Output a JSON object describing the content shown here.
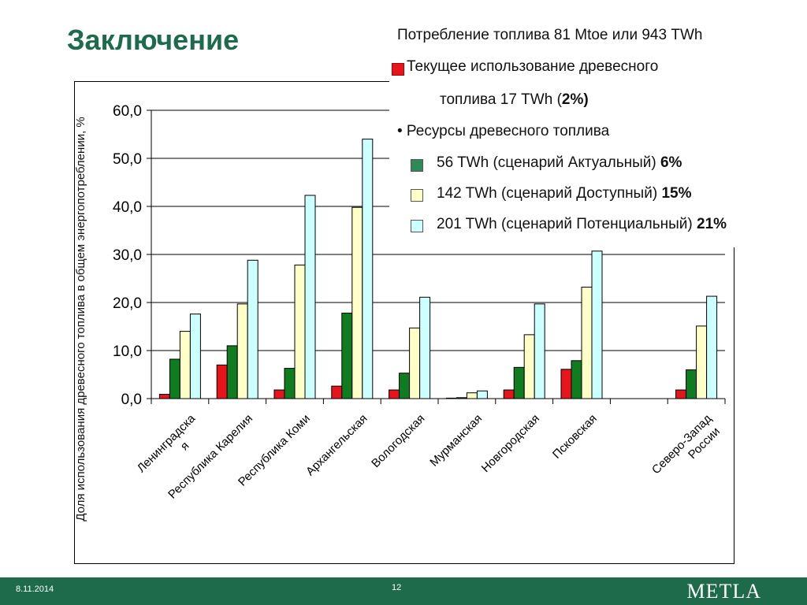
{
  "slide": {
    "title": "Заключение",
    "footer_date": "8.11.2014",
    "page_number": "12",
    "logo": "METLA"
  },
  "info": {
    "line1": "Потребление топлива 81 Mtoe или 943 TWh",
    "line2": "Текущее использование древесного",
    "line3_text": "топлива 17 TWh (",
    "line3_bold": "2%)",
    "line4": "• Ресурсы древесного топлива",
    "s1_text": "56 TWh (сценарий Актуальный) ",
    "s1_bold": "6%",
    "s2_text": "142 TWh (сценарий Доступный) ",
    "s2_bold": "15%",
    "s3_text": "201 TWh (сценарий Потенциальный) ",
    "s3_bold": "21%"
  },
  "colors": {
    "current": "#e8141b",
    "actual": "#0f7d1f",
    "available": "#ffffc8",
    "potential": "#ccffff",
    "swatch_actual": "#2e8b57",
    "brand": "#1e6b4b"
  },
  "chart_data": {
    "type": "bar",
    "ylabel": "Доля использования древесного топлива в общем энергопотреблении, %",
    "ylim": [
      0,
      60
    ],
    "yticks": [
      "0,0",
      "10,0",
      "20,0",
      "30,0",
      "40,0",
      "50,0",
      "60,0"
    ],
    "grid": true,
    "categories": [
      "Ленинградская",
      "Республика Карелия",
      "Республика Коми",
      "Архангельская",
      "Вологодская",
      "Мурманская",
      "Новгородская",
      "Псковская",
      "",
      "Северо-Запад России"
    ],
    "category_lines": [
      [
        "Ленинградска",
        "я"
      ],
      [
        "Республика Карелия"
      ],
      [
        "Республика Коми"
      ],
      [
        "Архангельская"
      ],
      [
        "Вологодская"
      ],
      [
        "Мурманская"
      ],
      [
        "Новгородская"
      ],
      [
        "Псковская"
      ],
      [],
      [
        "Северо-Запад",
        "России"
      ]
    ],
    "series": [
      {
        "values": [
          0.9,
          7.0,
          1.8,
          2.6,
          1.8,
          0.1,
          1.8,
          6.1,
          0,
          1.8
        ]
      },
      {
        "values": [
          8.2,
          11.0,
          6.3,
          17.8,
          5.3,
          0.2,
          6.5,
          7.9,
          0,
          6.0
        ]
      },
      {
        "values": [
          14.0,
          19.7,
          27.8,
          39.8,
          14.7,
          1.2,
          13.3,
          23.2,
          0,
          15.1
        ]
      },
      {
        "values": [
          17.6,
          28.8,
          42.3,
          54.0,
          21.1,
          1.6,
          19.7,
          30.7,
          0,
          21.3
        ]
      }
    ]
  }
}
